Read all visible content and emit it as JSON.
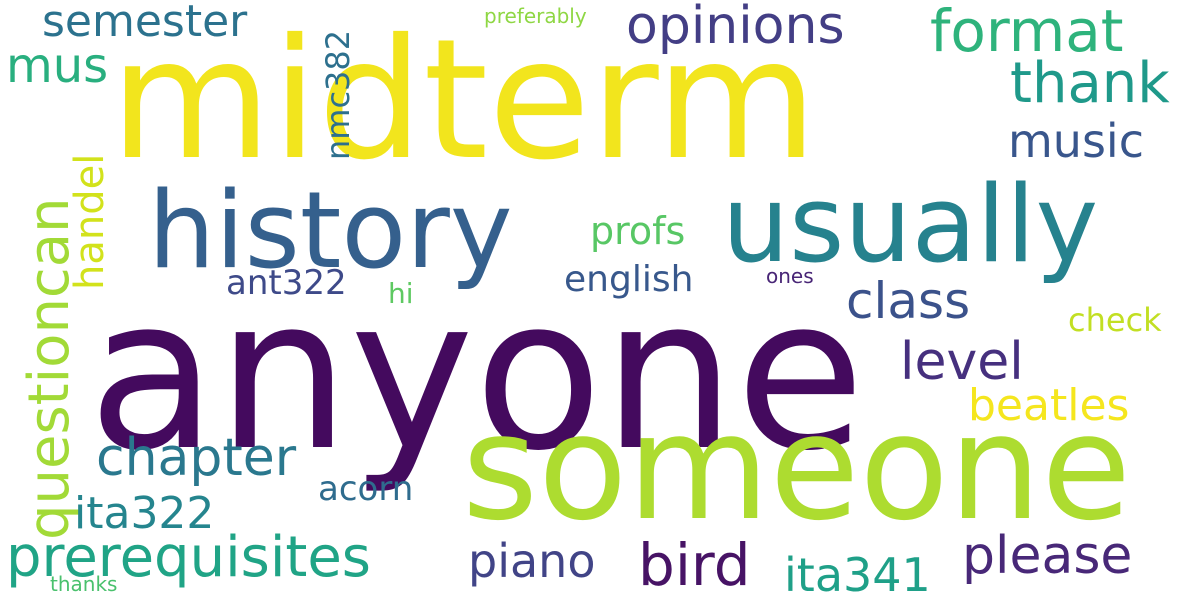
{
  "words": [
    {
      "text": "midterm",
      "color": "#f2e51d"
    },
    {
      "text": "anyone",
      "color": "#440a5e"
    },
    {
      "text": "someone",
      "color": "#addc30"
    },
    {
      "text": "history",
      "color": "#35608d"
    },
    {
      "text": "usually",
      "color": "#26828e"
    },
    {
      "text": "questioncan",
      "color": "#a2da37"
    },
    {
      "text": "prerequisites",
      "color": "#20a486"
    },
    {
      "text": "format",
      "color": "#2eb37c"
    },
    {
      "text": "opinions",
      "color": "#433e85"
    },
    {
      "text": "semester",
      "color": "#2c728e"
    },
    {
      "text": "thank",
      "color": "#1f998a"
    },
    {
      "text": "music",
      "color": "#39568c"
    },
    {
      "text": "class",
      "color": "#3b528b"
    },
    {
      "text": "level",
      "color": "#46307e"
    },
    {
      "text": "chapter",
      "color": "#2a788e"
    },
    {
      "text": "please",
      "color": "#482878"
    },
    {
      "text": "bird",
      "color": "#471365"
    },
    {
      "text": "piano",
      "color": "#414487"
    },
    {
      "text": "ita341",
      "color": "#1fa088"
    },
    {
      "text": "ita322",
      "color": "#25858e"
    },
    {
      "text": "beatles",
      "color": "#f5e61e"
    },
    {
      "text": "mus",
      "color": "#29af7f"
    },
    {
      "text": "handel",
      "color": "#d2e21b"
    },
    {
      "text": "nmc382",
      "color": "#2d708e"
    },
    {
      "text": "english",
      "color": "#38588c"
    },
    {
      "text": "profs",
      "color": "#58c765"
    },
    {
      "text": "ant322",
      "color": "#3e4a89"
    },
    {
      "text": "acorn",
      "color": "#2f6c8e"
    },
    {
      "text": "check",
      "color": "#c2df23"
    },
    {
      "text": "hi",
      "color": "#5ec962"
    },
    {
      "text": "ones",
      "color": "#482576"
    },
    {
      "text": "preferably",
      "color": "#8fd744"
    },
    {
      "text": "thanks",
      "color": "#4ac16d"
    }
  ]
}
